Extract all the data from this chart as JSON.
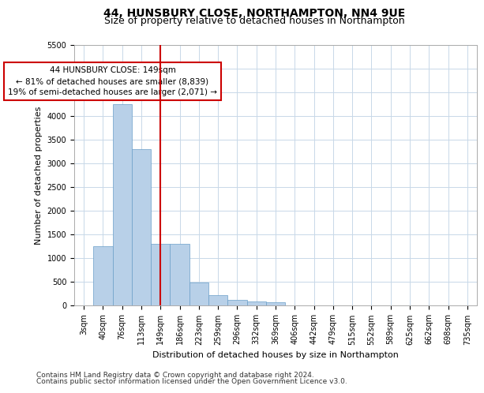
{
  "title": "44, HUNSBURY CLOSE, NORTHAMPTON, NN4 9UE",
  "subtitle": "Size of property relative to detached houses in Northampton",
  "xlabel": "Distribution of detached houses by size in Northampton",
  "ylabel": "Number of detached properties",
  "footnote1": "Contains HM Land Registry data © Crown copyright and database right 2024.",
  "footnote2": "Contains public sector information licensed under the Open Government Licence v3.0.",
  "annotation_line1": "44 HUNSBURY CLOSE: 149sqm",
  "annotation_line2": "← 81% of detached houses are smaller (8,839)",
  "annotation_line3": "19% of semi-detached houses are larger (2,071) →",
  "categories": [
    "3sqm",
    "40sqm",
    "76sqm",
    "113sqm",
    "149sqm",
    "186sqm",
    "223sqm",
    "259sqm",
    "296sqm",
    "332sqm",
    "369sqm",
    "406sqm",
    "442sqm",
    "479sqm",
    "515sqm",
    "552sqm",
    "589sqm",
    "625sqm",
    "662sqm",
    "698sqm",
    "735sqm"
  ],
  "values": [
    0,
    1250,
    4250,
    3300,
    1300,
    1300,
    480,
    220,
    110,
    80,
    60,
    0,
    0,
    0,
    0,
    0,
    0,
    0,
    0,
    0,
    0
  ],
  "bar_color": "#b8d0e8",
  "bar_edge_color": "#6a9fc8",
  "vline_color": "#cc0000",
  "vline_x_index": 4,
  "annotation_box_color": "#cc0000",
  "background_color": "#ffffff",
  "grid_color": "#c8d8e8",
  "ylim": [
    0,
    5500
  ],
  "yticks": [
    0,
    500,
    1000,
    1500,
    2000,
    2500,
    3000,
    3500,
    4000,
    4500,
    5000,
    5500
  ],
  "title_fontsize": 10,
  "subtitle_fontsize": 9,
  "axis_label_fontsize": 8,
  "tick_fontsize": 7,
  "annotation_fontsize": 7.5,
  "footnote_fontsize": 6.5
}
